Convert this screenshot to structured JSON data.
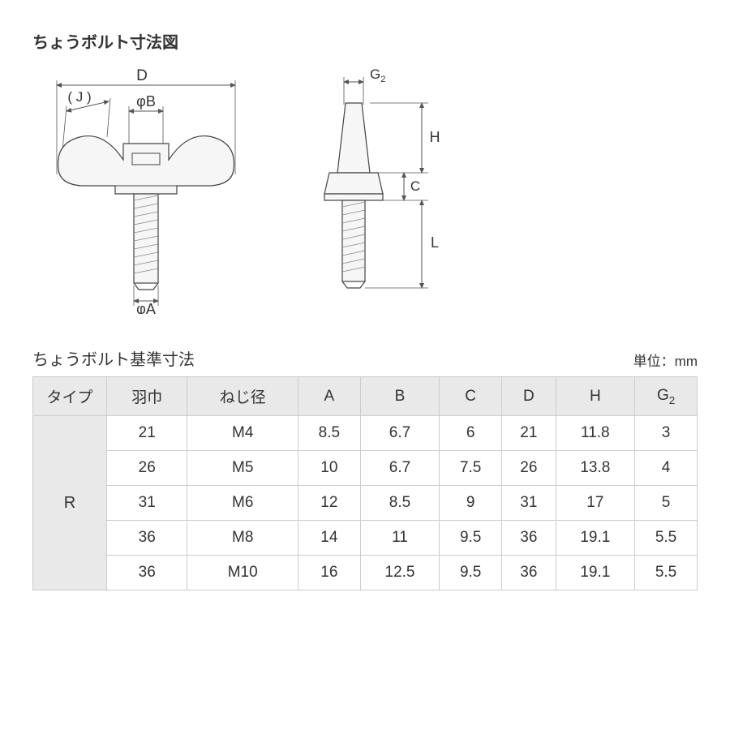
{
  "title": "ちょうボルト寸法図",
  "subtitle": "ちょうボルト基準寸法",
  "unit": "単位：mm",
  "diagram_labels": {
    "D": "D",
    "J": "( J )",
    "phiB": "φB",
    "phiA": "φA",
    "G2": "G",
    "G2sub": "2",
    "H": "H",
    "C": "C",
    "L": "L"
  },
  "table": {
    "headers": [
      "タイプ",
      "羽巾",
      "ねじ径",
      "A",
      "B",
      "C",
      "D",
      "H",
      "G2"
    ],
    "type_label": "R",
    "rows": [
      [
        "21",
        "M4",
        "8.5",
        "6.7",
        "6",
        "21",
        "11.8",
        "3"
      ],
      [
        "26",
        "M5",
        "10",
        "6.7",
        "7.5",
        "26",
        "13.8",
        "4"
      ],
      [
        "31",
        "M6",
        "12",
        "8.5",
        "9",
        "31",
        "17",
        "5"
      ],
      [
        "36",
        "M8",
        "14",
        "11",
        "9.5",
        "36",
        "19.1",
        "5.5"
      ],
      [
        "36",
        "M10",
        "16",
        "12.5",
        "9.5",
        "36",
        "19.1",
        "5.5"
      ]
    ]
  },
  "colors": {
    "line": "#444444",
    "fill": "#f6f6f6",
    "thread": "#d8d8d8",
    "dim_line": "#555555",
    "text": "#333333"
  }
}
